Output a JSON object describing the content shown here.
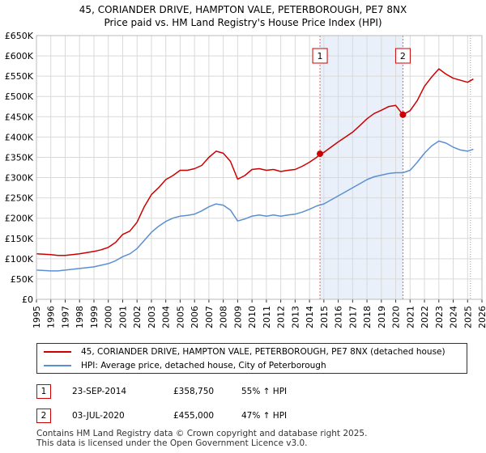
{
  "chart_data": {
    "type": "line",
    "title": "45, CORIANDER DRIVE, HAMPTON VALE, PETERBOROUGH, PE7 8NX",
    "subtitle": "Price paid vs. HM Land Registry's House Price Index (HPI)",
    "xlim": [
      1995,
      2026
    ],
    "ylim": [
      0,
      650000
    ],
    "x_ticks": [
      "1995",
      "1996",
      "1997",
      "1998",
      "1999",
      "2000",
      "2001",
      "2002",
      "2003",
      "2004",
      "2005",
      "2006",
      "2007",
      "2008",
      "2009",
      "2010",
      "2011",
      "2012",
      "2013",
      "2014",
      "2015",
      "2016",
      "2017",
      "2018",
      "2019",
      "2020",
      "2021",
      "2022",
      "2023",
      "2024",
      "2025",
      "2026"
    ],
    "y_ticks": [
      {
        "value": 0,
        "label": "£0"
      },
      {
        "value": 50000,
        "label": "£50K"
      },
      {
        "value": 100000,
        "label": "£100K"
      },
      {
        "value": 150000,
        "label": "£150K"
      },
      {
        "value": 200000,
        "label": "£200K"
      },
      {
        "value": 250000,
        "label": "£250K"
      },
      {
        "value": 300000,
        "label": "£300K"
      },
      {
        "value": 350000,
        "label": "£350K"
      },
      {
        "value": 400000,
        "label": "£400K"
      },
      {
        "value": 450000,
        "label": "£450K"
      },
      {
        "value": 500000,
        "label": "£500K"
      },
      {
        "value": 550000,
        "label": "£550K"
      },
      {
        "value": 600000,
        "label": "£600K"
      },
      {
        "value": 650000,
        "label": "£650K"
      }
    ],
    "shaded_region": [
      2014.73,
      2020.5
    ],
    "forecast_from": 2025.2,
    "series": [
      {
        "name": "45, CORIANDER DRIVE, HAMPTON VALE, PETERBOROUGH, PE7 8NX (detached house)",
        "color": "#cc0000",
        "x": [
          1995.0,
          1995.5,
          1996.0,
          1996.5,
          1997.0,
          1997.5,
          1998.0,
          1998.5,
          1999.0,
          1999.5,
          2000.0,
          2000.5,
          2001.0,
          2001.5,
          2002.0,
          2002.5,
          2003.0,
          2003.5,
          2004.0,
          2004.5,
          2005.0,
          2005.5,
          2006.0,
          2006.5,
          2007.0,
          2007.5,
          2008.0,
          2008.5,
          2009.0,
          2009.5,
          2010.0,
          2010.5,
          2011.0,
          2011.5,
          2012.0,
          2012.5,
          2013.0,
          2013.5,
          2014.0,
          2014.5,
          2014.73,
          2015.0,
          2015.5,
          2016.0,
          2016.5,
          2017.0,
          2017.5,
          2018.0,
          2018.5,
          2019.0,
          2019.5,
          2020.0,
          2020.5,
          2021.0,
          2021.5,
          2022.0,
          2022.5,
          2023.0,
          2023.5,
          2024.0,
          2024.5,
          2025.0,
          2025.4
        ],
        "y": [
          112000,
          111000,
          110000,
          108000,
          108000,
          110000,
          112000,
          115000,
          118000,
          122000,
          128000,
          140000,
          160000,
          168000,
          190000,
          228000,
          258000,
          275000,
          295000,
          305000,
          318000,
          318000,
          322000,
          330000,
          350000,
          365000,
          360000,
          340000,
          296000,
          305000,
          320000,
          322000,
          318000,
          320000,
          315000,
          318000,
          320000,
          328000,
          338000,
          350000,
          358750,
          362000,
          375000,
          388000,
          400000,
          412000,
          428000,
          445000,
          458000,
          466000,
          475000,
          478000,
          455000,
          465000,
          490000,
          525000,
          548000,
          568000,
          555000,
          545000,
          540000,
          535000,
          543000
        ]
      },
      {
        "name": "HPI: Average price, detached house, City of Peterborough",
        "color": "#5b8fd0",
        "x": [
          1995.0,
          1995.5,
          1996.0,
          1996.5,
          1997.0,
          1997.5,
          1998.0,
          1998.5,
          1999.0,
          1999.5,
          2000.0,
          2000.5,
          2001.0,
          2001.5,
          2002.0,
          2002.5,
          2003.0,
          2003.5,
          2004.0,
          2004.5,
          2005.0,
          2005.5,
          2006.0,
          2006.5,
          2007.0,
          2007.5,
          2008.0,
          2008.5,
          2009.0,
          2009.5,
          2010.0,
          2010.5,
          2011.0,
          2011.5,
          2012.0,
          2012.5,
          2013.0,
          2013.5,
          2014.0,
          2014.5,
          2015.0,
          2015.5,
          2016.0,
          2016.5,
          2017.0,
          2017.5,
          2018.0,
          2018.5,
          2019.0,
          2019.5,
          2020.0,
          2020.5,
          2021.0,
          2021.5,
          2022.0,
          2022.5,
          2023.0,
          2023.5,
          2024.0,
          2024.5,
          2025.0,
          2025.4
        ],
        "y": [
          72000,
          71000,
          70000,
          70000,
          72000,
          74000,
          76000,
          78000,
          80000,
          84000,
          88000,
          95000,
          105000,
          112000,
          125000,
          145000,
          165000,
          180000,
          192000,
          200000,
          205000,
          207000,
          210000,
          218000,
          228000,
          235000,
          232000,
          220000,
          193000,
          198000,
          205000,
          208000,
          205000,
          208000,
          205000,
          208000,
          210000,
          215000,
          222000,
          230000,
          235000,
          245000,
          255000,
          265000,
          275000,
          285000,
          295000,
          302000,
          306000,
          310000,
          312000,
          312000,
          318000,
          338000,
          360000,
          378000,
          390000,
          385000,
          375000,
          368000,
          365000,
          370000
        ]
      }
    ],
    "sales": [
      {
        "id": "1",
        "x": 2014.73,
        "y": 358750
      },
      {
        "id": "2",
        "x": 2020.5,
        "y": 455000
      }
    ]
  },
  "legend": [
    {
      "label": "45, CORIANDER DRIVE, HAMPTON VALE, PETERBOROUGH, PE7 8NX (detached house)",
      "color": "#cc0000"
    },
    {
      "label": "HPI: Average price, detached house, City of Peterborough",
      "color": "#5b8fd0"
    }
  ],
  "sales_table": [
    {
      "id": "1",
      "date": "23-SEP-2014",
      "price": "£358,750",
      "hpi": "55% ↑ HPI"
    },
    {
      "id": "2",
      "date": "03-JUL-2020",
      "price": "£455,000",
      "hpi": "47% ↑ HPI"
    }
  ],
  "footer": {
    "line1": "Contains HM Land Registry data © Crown copyright and database right 2025.",
    "line2": "This data is licensed under the Open Government Licence v3.0."
  }
}
